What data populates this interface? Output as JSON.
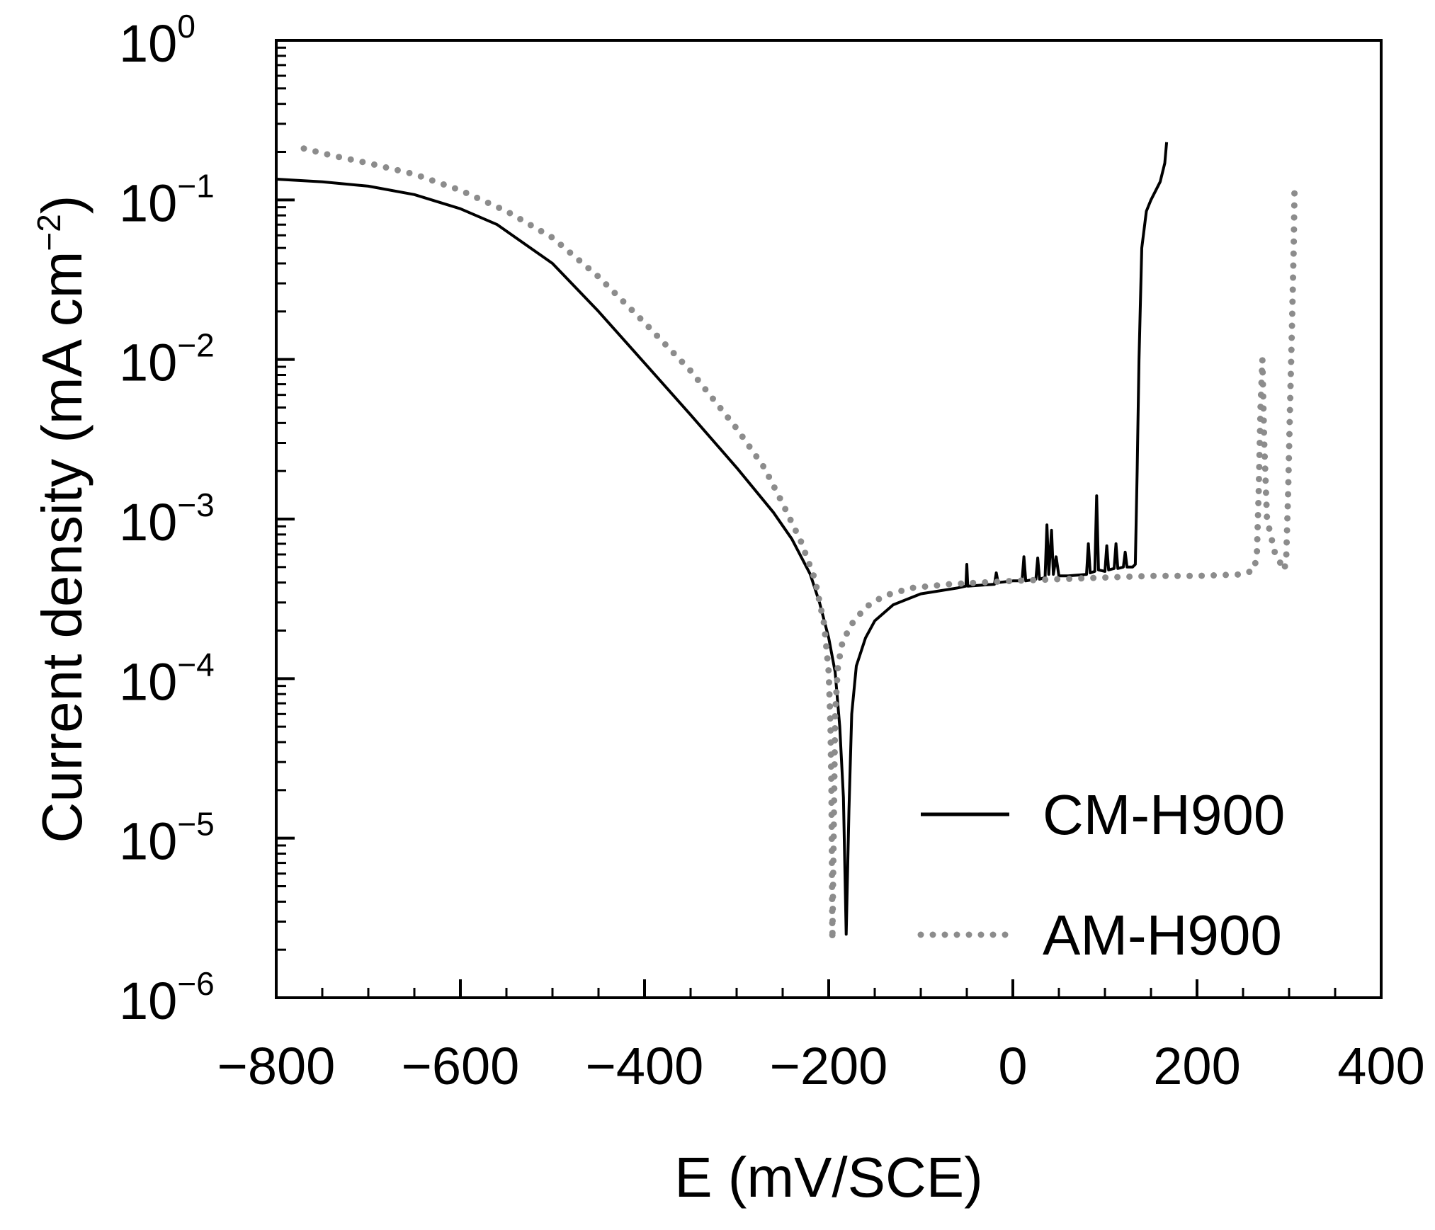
{
  "chart_data": {
    "type": "line",
    "title": "",
    "xlabel": "E (mV/SCE)",
    "ylabel": "Current density (mA cm",
    "ylabel_exponent": "−2",
    "ylabel_suffix": ")",
    "xlim": [
      -800,
      400
    ],
    "ylim_log10": [
      -6,
      0
    ],
    "x_ticks": [
      {
        "value": -800,
        "label": "−800"
      },
      {
        "value": -600,
        "label": "−600"
      },
      {
        "value": -400,
        "label": "−400"
      },
      {
        "value": -200,
        "label": "−200"
      },
      {
        "value": 0,
        "label": "0"
      },
      {
        "value": 200,
        "label": "200"
      },
      {
        "value": 400,
        "label": "400"
      }
    ],
    "y_ticks": [
      {
        "exp": 0,
        "base": "10",
        "sup": "0"
      },
      {
        "exp": -1,
        "base": "10",
        "sup": "−1"
      },
      {
        "exp": -2,
        "base": "10",
        "sup": "−2"
      },
      {
        "exp": -3,
        "base": "10",
        "sup": "−3"
      },
      {
        "exp": -4,
        "base": "10",
        "sup": "−4"
      },
      {
        "exp": -5,
        "base": "10",
        "sup": "−5"
      },
      {
        "exp": -6,
        "base": "10",
        "sup": "−6"
      }
    ],
    "legend": {
      "position": "bottom-right"
    },
    "series": [
      {
        "name": "CM-H900",
        "style": "solid",
        "color": "#000000",
        "points": [
          [
            -800,
            0.135
          ],
          [
            -750,
            0.13
          ],
          [
            -700,
            0.122
          ],
          [
            -650,
            0.108
          ],
          [
            -600,
            0.088
          ],
          [
            -560,
            0.07
          ],
          [
            -500,
            0.04
          ],
          [
            -450,
            0.02
          ],
          [
            -400,
            0.0095
          ],
          [
            -350,
            0.0045
          ],
          [
            -300,
            0.0021
          ],
          [
            -260,
            0.0011
          ],
          [
            -240,
            0.00075
          ],
          [
            -220,
            0.00045
          ],
          [
            -210,
            0.0003
          ],
          [
            -200,
            0.00018
          ],
          [
            -193,
            0.00011
          ],
          [
            -188,
            5e-05
          ],
          [
            -184,
            1.8e-05
          ],
          [
            -181,
            2.5e-06
          ],
          [
            -178,
            1.5e-05
          ],
          [
            -175,
            6e-05
          ],
          [
            -170,
            0.00012
          ],
          [
            -160,
            0.00018
          ],
          [
            -150,
            0.00023
          ],
          [
            -130,
            0.00029
          ],
          [
            -100,
            0.00034
          ],
          [
            -60,
            0.00037
          ],
          [
            -51,
            0.00038
          ],
          [
            -50,
            0.00052
          ],
          [
            -49,
            0.00038
          ],
          [
            -20,
            0.00039
          ],
          [
            -18,
            0.00046
          ],
          [
            -16,
            0.0004
          ],
          [
            0,
            0.00041
          ],
          [
            10,
            0.00041
          ],
          [
            12,
            0.00058
          ],
          [
            14,
            0.00041
          ],
          [
            25,
            0.00042
          ],
          [
            27,
            0.00057
          ],
          [
            29,
            0.00042
          ],
          [
            35,
            0.00043
          ],
          [
            37,
            0.00092
          ],
          [
            39,
            0.00045
          ],
          [
            42,
            0.00085
          ],
          [
            44,
            0.00045
          ],
          [
            47,
            0.00058
          ],
          [
            50,
            0.00044
          ],
          [
            60,
            0.00044
          ],
          [
            80,
            0.00045
          ],
          [
            82,
            0.0007
          ],
          [
            84,
            0.00046
          ],
          [
            89,
            0.00047
          ],
          [
            91,
            0.0014
          ],
          [
            93,
            0.00048
          ],
          [
            100,
            0.00047
          ],
          [
            102,
            0.00068
          ],
          [
            104,
            0.00048
          ],
          [
            110,
            0.00049
          ],
          [
            112,
            0.0007
          ],
          [
            114,
            0.00049
          ],
          [
            120,
            0.0005
          ],
          [
            122,
            0.00062
          ],
          [
            124,
            0.0005
          ],
          [
            130,
            0.0005
          ],
          [
            133,
            0.00052
          ],
          [
            135,
            0.002
          ],
          [
            137,
            0.01
          ],
          [
            140,
            0.05
          ],
          [
            145,
            0.085
          ],
          [
            150,
            0.1
          ],
          [
            160,
            0.13
          ],
          [
            165,
            0.17
          ],
          [
            167,
            0.23
          ]
        ]
      },
      {
        "name": "AM-H900",
        "style": "dotted",
        "color": "#8c8c8c",
        "points": [
          [
            -770,
            0.21
          ],
          [
            -740,
            0.19
          ],
          [
            -700,
            0.17
          ],
          [
            -650,
            0.145
          ],
          [
            -600,
            0.115
          ],
          [
            -550,
            0.085
          ],
          [
            -500,
            0.058
          ],
          [
            -450,
            0.033
          ],
          [
            -400,
            0.017
          ],
          [
            -350,
            0.0085
          ],
          [
            -300,
            0.0037
          ],
          [
            -270,
            0.0021
          ],
          [
            -250,
            0.00125
          ],
          [
            -230,
            0.00072
          ],
          [
            -215,
            0.00042
          ],
          [
            -205,
            0.00022
          ],
          [
            -200,
            0.00011
          ],
          [
            -198,
            5e-05
          ],
          [
            -197,
            2e-05
          ],
          [
            -196,
            2.3e-06
          ],
          [
            -194,
            2e-05
          ],
          [
            -193,
            6e-05
          ],
          [
            -190,
            0.00012
          ],
          [
            -185,
            0.00017
          ],
          [
            -175,
            0.00022
          ],
          [
            -160,
            0.00028
          ],
          [
            -140,
            0.00033
          ],
          [
            -110,
            0.00037
          ],
          [
            -70,
            0.00039
          ],
          [
            0,
            0.00041
          ],
          [
            50,
            0.00042
          ],
          [
            100,
            0.00043
          ],
          [
            150,
            0.00044
          ],
          [
            200,
            0.00044
          ],
          [
            250,
            0.00045
          ],
          [
            262,
            0.00048
          ],
          [
            265,
            0.0006
          ],
          [
            267,
            0.0015
          ],
          [
            269,
            0.005
          ],
          [
            271,
            0.01
          ],
          [
            273,
            0.003
          ],
          [
            276,
            0.001
          ],
          [
            285,
            0.0006
          ],
          [
            295,
            0.00048
          ],
          [
            297,
            0.0006
          ],
          [
            299,
            0.0015
          ],
          [
            301,
            0.005
          ],
          [
            303,
            0.015
          ],
          [
            305,
            0.05
          ],
          [
            306,
            0.13
          ]
        ]
      }
    ]
  }
}
